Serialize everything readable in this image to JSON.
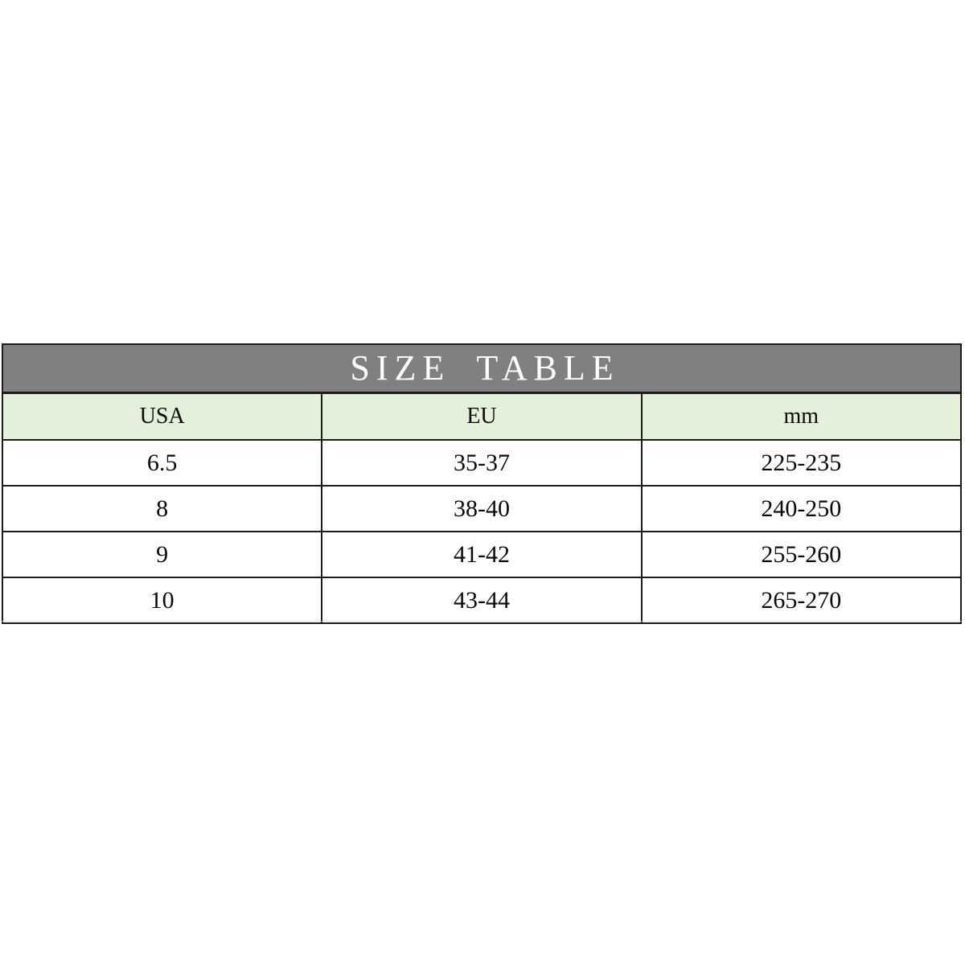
{
  "chart_data": {
    "type": "table",
    "title": "SIZE TABLE",
    "columns": [
      "USA",
      "EU",
      "mm"
    ],
    "rows": [
      [
        "6.5",
        "35-37",
        "225-235"
      ],
      [
        "8",
        "38-40",
        "240-250"
      ],
      [
        "9",
        "41-42",
        "255-260"
      ],
      [
        "10",
        "43-44",
        "265-270"
      ]
    ]
  },
  "colors": {
    "banner_bg": "#808080",
    "banner_text": "#ffffff",
    "header_bg": "#e5f0da",
    "border": "#1c1c1c",
    "cell_text": "#0a0a0a",
    "page_bg": "#ffffff"
  }
}
